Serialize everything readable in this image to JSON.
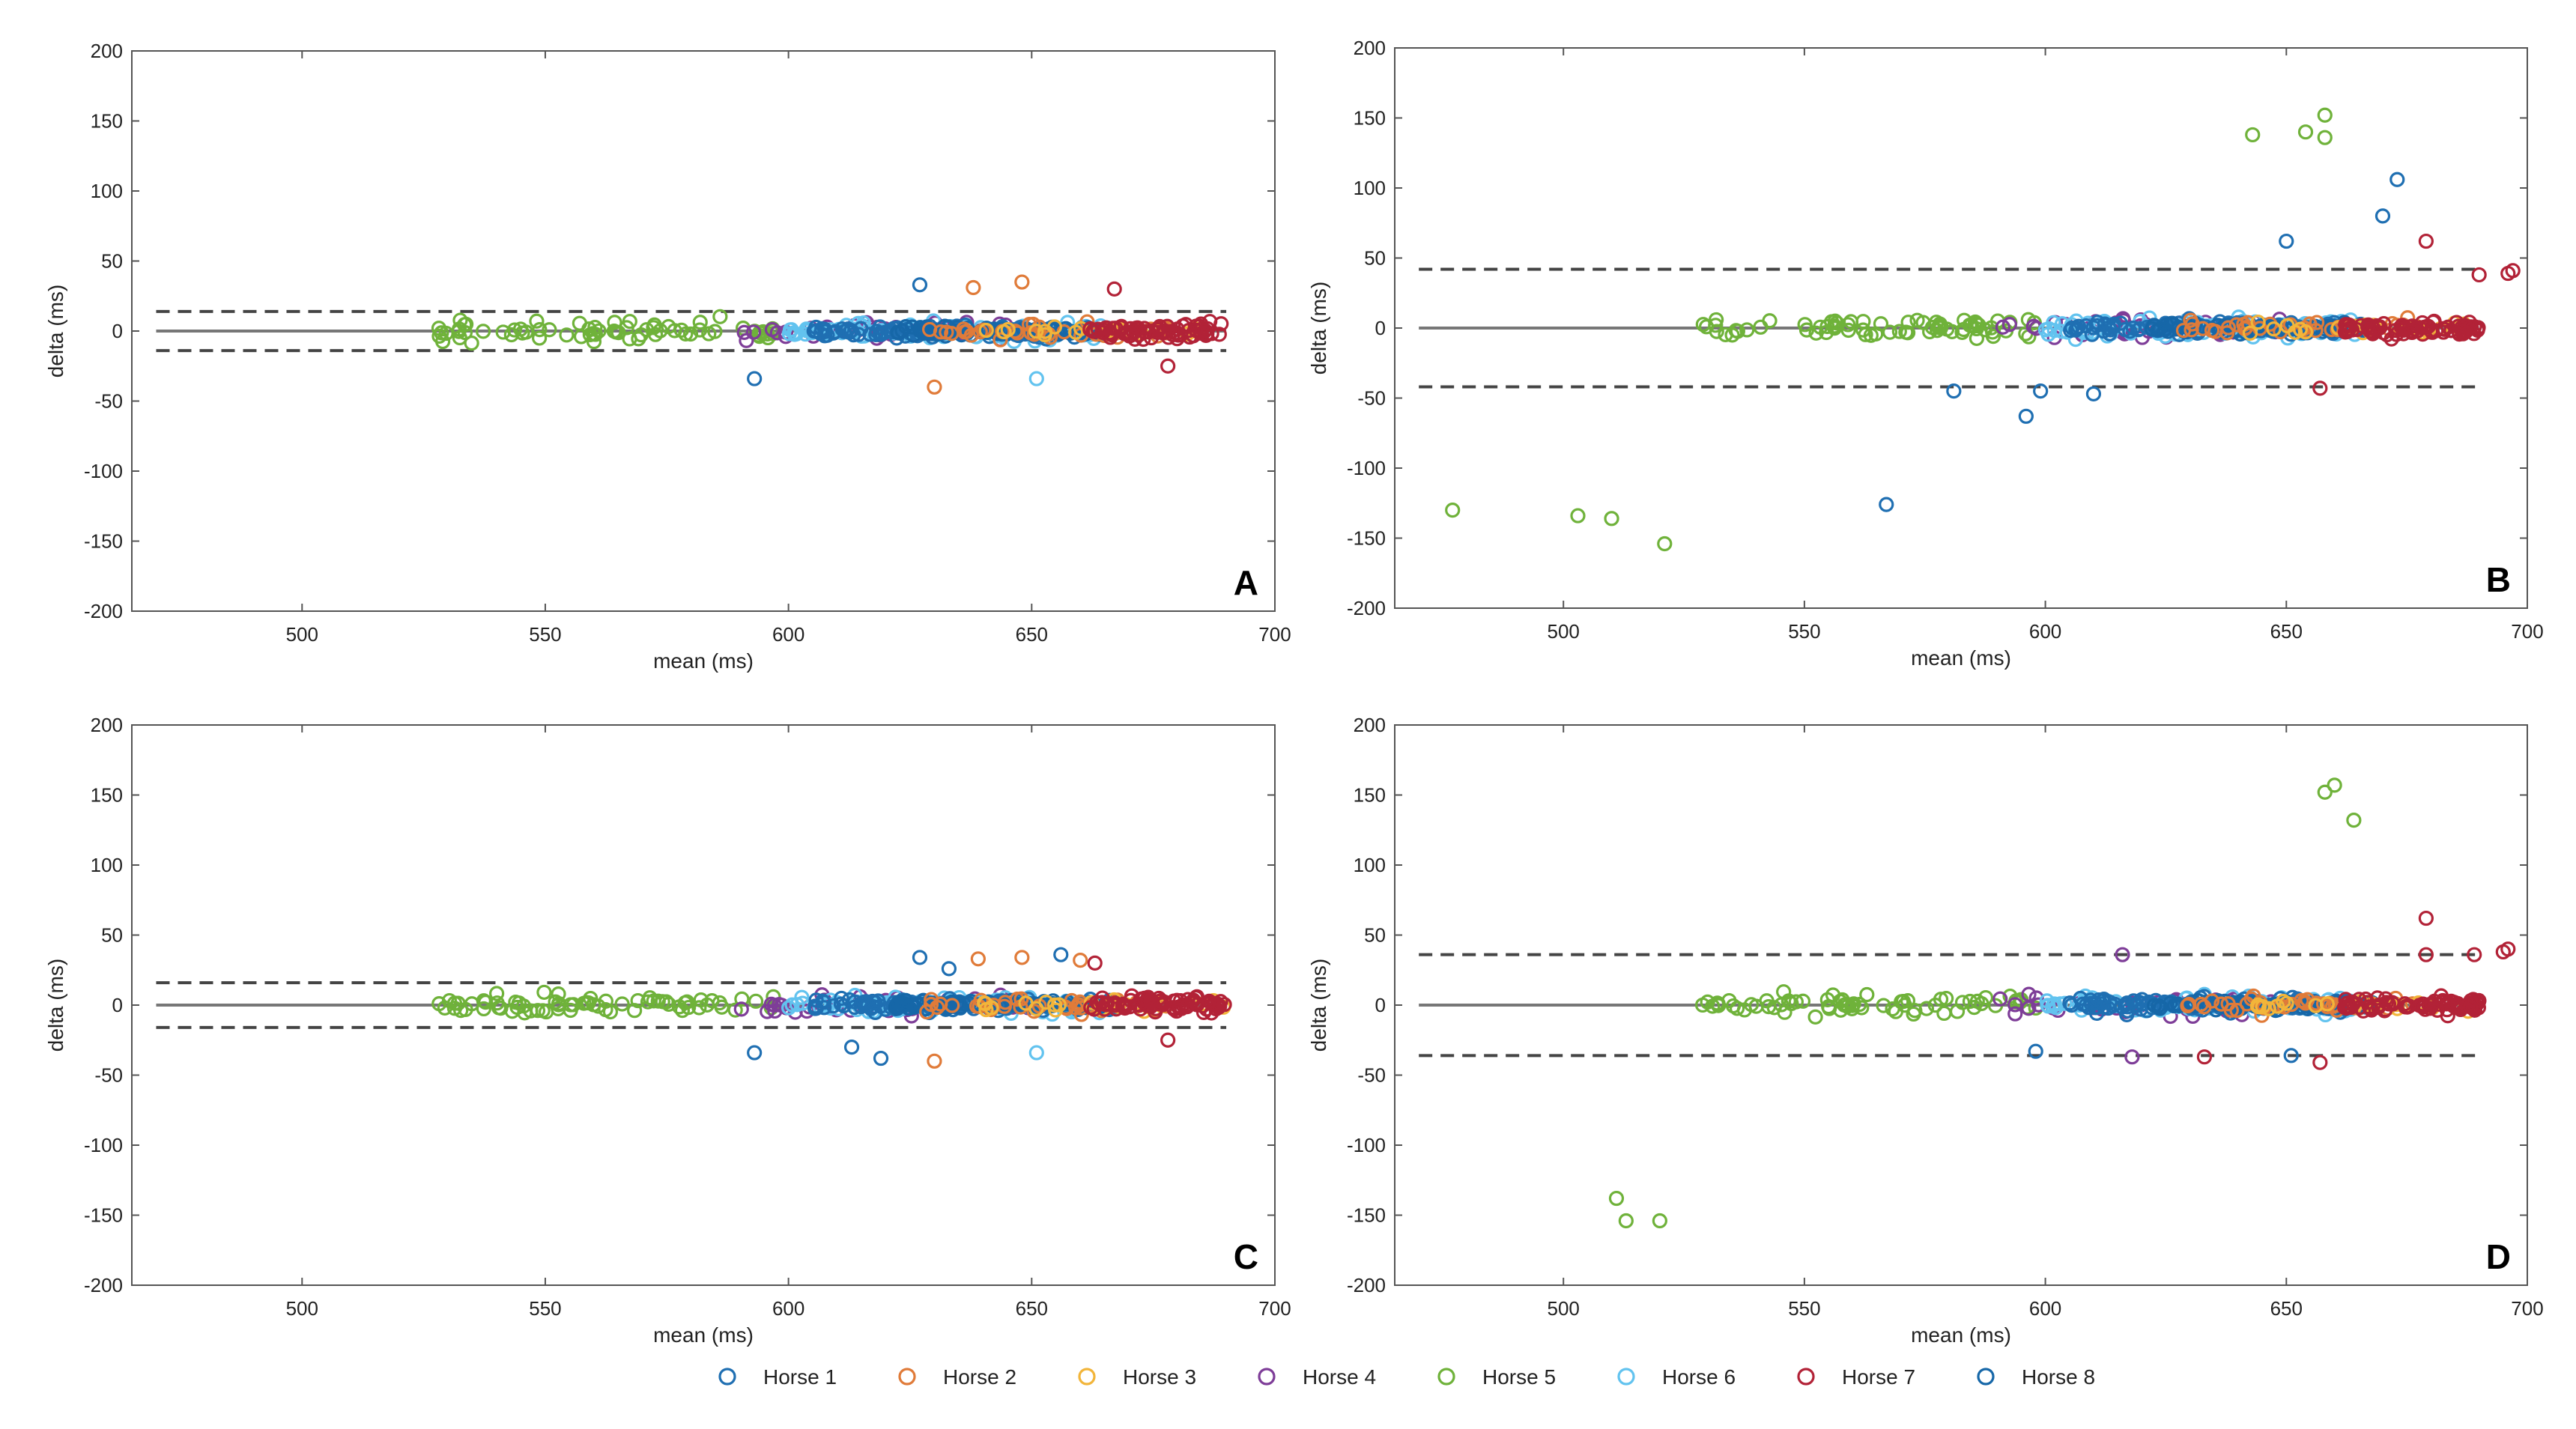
{
  "legend": [
    {
      "name": "Horse 1",
      "color": "#1f6fb2"
    },
    {
      "name": "Horse 2",
      "color": "#e07b39"
    },
    {
      "name": "Horse 3",
      "color": "#f2b53a"
    },
    {
      "name": "Horse 4",
      "color": "#7e3d98"
    },
    {
      "name": "Horse 5",
      "color": "#6fb23a"
    },
    {
      "name": "Horse 6",
      "color": "#62c3ef"
    },
    {
      "name": "Horse 7",
      "color": "#b22237"
    },
    {
      "name": "Horse 8",
      "color": "#1667a8"
    }
  ],
  "chart_data": [
    {
      "type": "scatter",
      "panel": "A",
      "xlabel": "mean (ms)",
      "ylabel": "delta (ms)",
      "xlim": [
        465,
        700
      ],
      "ylim": [
        -200,
        200
      ],
      "xticks": [
        500,
        550,
        600,
        650,
        700
      ],
      "yticks": [
        200,
        150,
        100,
        50,
        0,
        -50,
        -100,
        -150,
        -200
      ],
      "mean_line": 0,
      "limits": [
        14,
        -14
      ],
      "outliers": [
        {
          "x": 593,
          "y": -34,
          "horse": "Horse 1"
        },
        {
          "x": 627,
          "y": 33,
          "horse": "Horse 1"
        },
        {
          "x": 638,
          "y": 31,
          "horse": "Horse 2"
        },
        {
          "x": 648,
          "y": 35,
          "horse": "Horse 2"
        },
        {
          "x": 630,
          "y": -40,
          "horse": "Horse 2"
        },
        {
          "x": 651,
          "y": -34,
          "horse": "Horse 6"
        },
        {
          "x": 667,
          "y": 30,
          "horse": "Horse 7"
        },
        {
          "x": 678,
          "y": -25,
          "horse": "Horse 7"
        }
      ]
    },
    {
      "type": "scatter",
      "panel": "B",
      "xlabel": "mean (ms)",
      "ylabel": "delta (ms)",
      "xlim": [
        465,
        700
      ],
      "ylim": [
        -200,
        200
      ],
      "xticks": [
        500,
        550,
        600,
        650,
        700
      ],
      "yticks": [
        200,
        150,
        100,
        50,
        0,
        -50,
        -100,
        -150,
        -200
      ],
      "mean_line": 0,
      "limits": [
        42,
        -42
      ],
      "outliers": [
        {
          "x": 477,
          "y": -130,
          "horse": "Horse 5"
        },
        {
          "x": 503,
          "y": -134,
          "horse": "Horse 5"
        },
        {
          "x": 510,
          "y": -136,
          "horse": "Horse 5"
        },
        {
          "x": 521,
          "y": -154,
          "horse": "Horse 5"
        },
        {
          "x": 567,
          "y": -126,
          "horse": "Horse 1"
        },
        {
          "x": 643,
          "y": 138,
          "horse": "Horse 5"
        },
        {
          "x": 654,
          "y": 140,
          "horse": "Horse 5"
        },
        {
          "x": 658,
          "y": 152,
          "horse": "Horse 5"
        },
        {
          "x": 658,
          "y": 136,
          "horse": "Horse 5"
        },
        {
          "x": 673,
          "y": 106,
          "horse": "Horse 1"
        },
        {
          "x": 670,
          "y": 80,
          "horse": "Horse 1"
        },
        {
          "x": 650,
          "y": 62,
          "horse": "Horse 1"
        },
        {
          "x": 679,
          "y": 62,
          "horse": "Horse 7"
        },
        {
          "x": 596,
          "y": -63,
          "horse": "Horse 1"
        },
        {
          "x": 581,
          "y": -45,
          "horse": "Horse 1"
        },
        {
          "x": 599,
          "y": -45,
          "horse": "Horse 1"
        },
        {
          "x": 610,
          "y": -47,
          "horse": "Horse 1"
        },
        {
          "x": 690,
          "y": 38,
          "horse": "Horse 7"
        },
        {
          "x": 696,
          "y": 39,
          "horse": "Horse 7"
        },
        {
          "x": 697,
          "y": 41,
          "horse": "Horse 7"
        },
        {
          "x": 657,
          "y": -43,
          "horse": "Horse 7"
        }
      ]
    },
    {
      "type": "scatter",
      "panel": "C",
      "xlabel": "mean (ms)",
      "ylabel": "delta (ms)",
      "xlim": [
        465,
        700
      ],
      "ylim": [
        -200,
        200
      ],
      "xticks": [
        500,
        550,
        600,
        650,
        700
      ],
      "yticks": [
        200,
        150,
        100,
        50,
        0,
        -50,
        -100,
        -150,
        -200
      ],
      "mean_line": 0,
      "limits": [
        16,
        -16
      ],
      "outliers": [
        {
          "x": 593,
          "y": -34,
          "horse": "Horse 1"
        },
        {
          "x": 613,
          "y": -30,
          "horse": "Horse 1"
        },
        {
          "x": 619,
          "y": -38,
          "horse": "Horse 1"
        },
        {
          "x": 627,
          "y": 34,
          "horse": "Horse 1"
        },
        {
          "x": 633,
          "y": 26,
          "horse": "Horse 1"
        },
        {
          "x": 639,
          "y": 33,
          "horse": "Horse 2"
        },
        {
          "x": 648,
          "y": 34,
          "horse": "Horse 2"
        },
        {
          "x": 656,
          "y": 36,
          "horse": "Horse 1"
        },
        {
          "x": 660,
          "y": 32,
          "horse": "Horse 2"
        },
        {
          "x": 663,
          "y": 30,
          "horse": "Horse 7"
        },
        {
          "x": 630,
          "y": -40,
          "horse": "Horse 2"
        },
        {
          "x": 651,
          "y": -34,
          "horse": "Horse 6"
        },
        {
          "x": 678,
          "y": -25,
          "horse": "Horse 7"
        }
      ]
    },
    {
      "type": "scatter",
      "panel": "D",
      "xlabel": "mean (ms)",
      "ylabel": "delta (ms)",
      "xlim": [
        465,
        700
      ],
      "ylim": [
        -200,
        200
      ],
      "xticks": [
        500,
        550,
        600,
        650,
        700
      ],
      "yticks": [
        200,
        150,
        100,
        50,
        0,
        -50,
        -100,
        -150,
        -200
      ],
      "mean_line": 0,
      "limits": [
        36,
        -36
      ],
      "outliers": [
        {
          "x": 511,
          "y": -138,
          "horse": "Horse 5"
        },
        {
          "x": 513,
          "y": -154,
          "horse": "Horse 5"
        },
        {
          "x": 520,
          "y": -154,
          "horse": "Horse 5"
        },
        {
          "x": 658,
          "y": 152,
          "horse": "Horse 5"
        },
        {
          "x": 660,
          "y": 157,
          "horse": "Horse 5"
        },
        {
          "x": 664,
          "y": 132,
          "horse": "Horse 5"
        },
        {
          "x": 679,
          "y": 62,
          "horse": "Horse 7"
        },
        {
          "x": 679,
          "y": 36,
          "horse": "Horse 7"
        },
        {
          "x": 689,
          "y": 36,
          "horse": "Horse 7"
        },
        {
          "x": 695,
          "y": 38,
          "horse": "Horse 7"
        },
        {
          "x": 696,
          "y": 40,
          "horse": "Horse 7"
        },
        {
          "x": 616,
          "y": 36,
          "horse": "Horse 4"
        },
        {
          "x": 657,
          "y": -41,
          "horse": "Horse 7"
        },
        {
          "x": 651,
          "y": -36,
          "horse": "Horse 1"
        },
        {
          "x": 598,
          "y": -33,
          "horse": "Horse 1"
        },
        {
          "x": 633,
          "y": -37,
          "horse": "Horse 7"
        },
        {
          "x": 618,
          "y": -37,
          "horse": "Horse 4"
        }
      ]
    }
  ],
  "clusters": [
    {
      "horse": "Horse 5",
      "x": [
        528,
        598
      ],
      "spread": 9,
      "count": 70
    },
    {
      "horse": "Horse 4",
      "x": [
        590,
        650
      ],
      "spread": 8,
      "count": 45
    },
    {
      "horse": "Horse 6",
      "x": [
        600,
        665
      ],
      "spread": 8,
      "count": 90
    },
    {
      "horse": "Horse 1",
      "x": [
        605,
        668
      ],
      "spread": 6,
      "count": 110
    },
    {
      "horse": "Horse 8",
      "x": [
        622,
        668
      ],
      "spread": 4,
      "count": 80
    },
    {
      "horse": "Horse 2",
      "x": [
        628,
        680
      ],
      "spread": 7,
      "count": 40
    },
    {
      "horse": "Horse 3",
      "x": [
        640,
        690
      ],
      "spread": 5,
      "count": 25
    },
    {
      "horse": "Horse 7",
      "x": [
        662,
        690
      ],
      "spread": 7,
      "count": 80
    }
  ]
}
